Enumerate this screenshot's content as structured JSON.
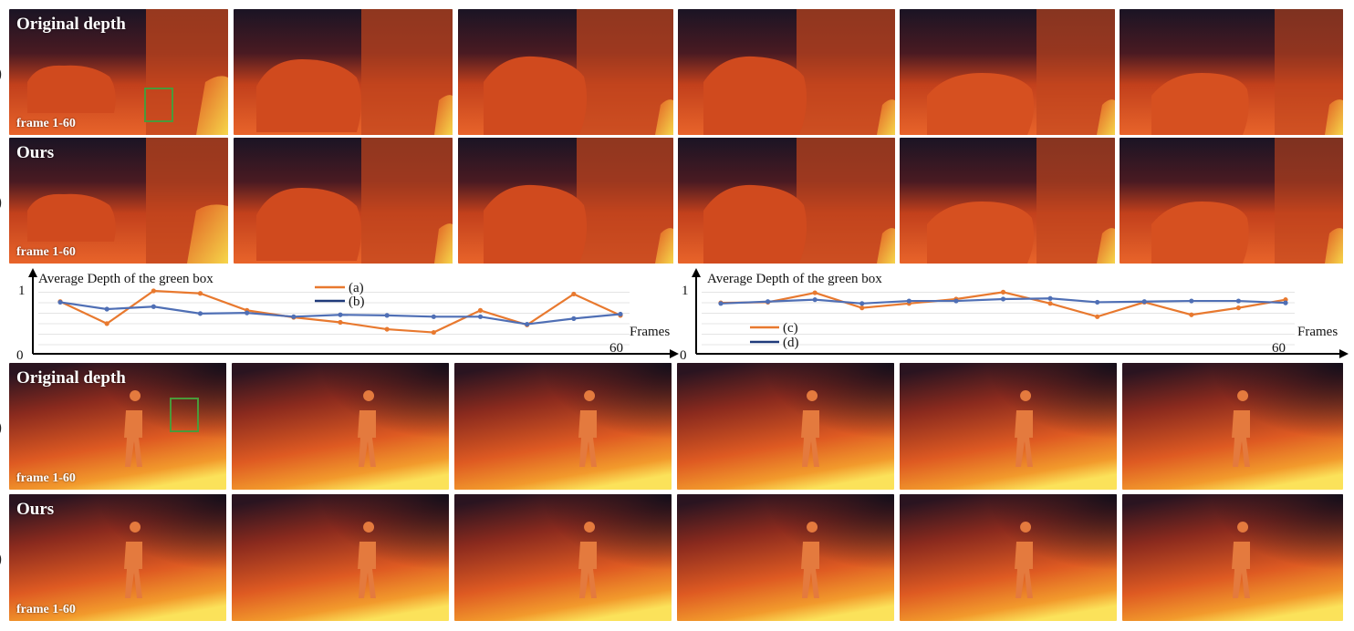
{
  "panels": {
    "top": {
      "row1_label": "Original depth",
      "row2_label": "Ours",
      "frame_label": "frame 1-60",
      "side_marks": [
        ")",
        ")"
      ]
    },
    "bottom": {
      "row1_label": "Original depth",
      "row2_label": "Ours",
      "frame_label": "frame 1-60",
      "side_marks": [
        ")",
        ")"
      ]
    }
  },
  "colors": {
    "green_box": "#4a9a3a",
    "series_orange": "#e8792f",
    "series_blue": "#4f6fb5",
    "legend_blue": "#1f3a7a"
  },
  "chart_data": [
    {
      "type": "line",
      "title": "Average Depth of the green box",
      "xlabel": "Frames",
      "x_end_label": "60",
      "y_ticks": [
        "0",
        "1"
      ],
      "ylim": [
        0,
        1
      ],
      "legend_position": "top-center",
      "series": [
        {
          "name": "(a)",
          "color": "#e8792f",
          "legend_color": "#e8792f",
          "values": [
            0.83,
            0.48,
            1.0,
            0.96,
            0.69,
            0.58,
            0.5,
            0.39,
            0.34,
            0.69,
            0.46,
            0.95,
            0.61
          ]
        },
        {
          "name": "(b)",
          "color": "#4f6fb5",
          "legend_color": "#1f3a7a",
          "values": [
            0.82,
            0.71,
            0.75,
            0.64,
            0.65,
            0.59,
            0.62,
            0.61,
            0.59,
            0.59,
            0.47,
            0.56,
            0.63
          ]
        }
      ]
    },
    {
      "type": "line",
      "title": "Average Depth of the green box",
      "xlabel": "Frames",
      "x_end_label": "60",
      "y_ticks": [
        "0",
        "1"
      ],
      "ylim": [
        0,
        1
      ],
      "legend_position": "bottom-left",
      "series": [
        {
          "name": "(c)",
          "color": "#e8792f",
          "legend_color": "#e8792f",
          "values": [
            0.81,
            0.82,
            0.97,
            0.73,
            0.8,
            0.87,
            0.98,
            0.8,
            0.59,
            0.82,
            0.62,
            0.73,
            0.86
          ]
        },
        {
          "name": "(d)",
          "color": "#4f6fb5",
          "legend_color": "#1f3a7a",
          "values": [
            0.8,
            0.83,
            0.86,
            0.8,
            0.84,
            0.84,
            0.87,
            0.88,
            0.82,
            0.83,
            0.84,
            0.84,
            0.81
          ]
        }
      ]
    }
  ]
}
